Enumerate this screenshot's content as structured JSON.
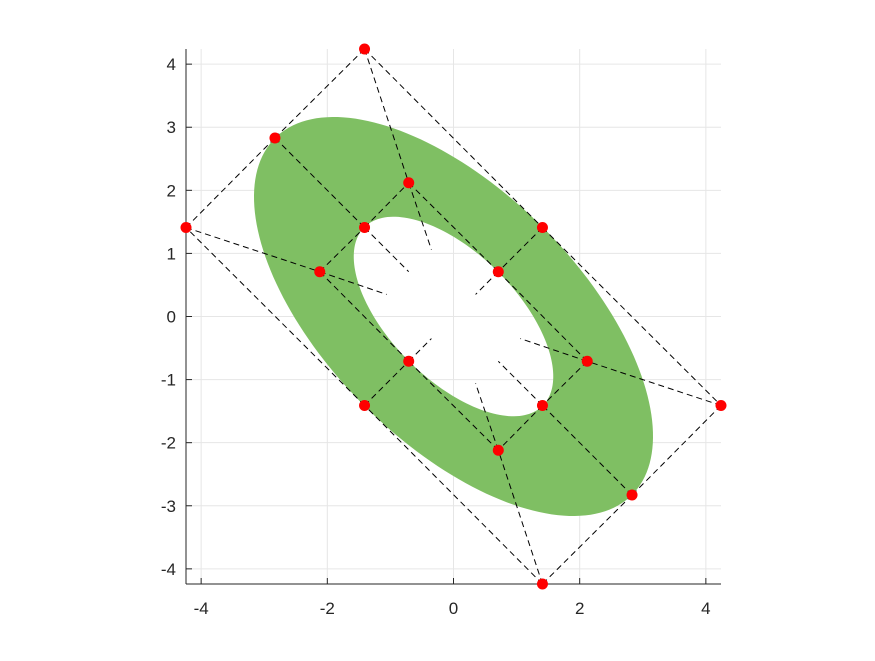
{
  "chart_data": {
    "type": "scatter",
    "title": "",
    "xlabel": "",
    "ylabel": "",
    "xlim": [
      -4.24,
      4.24
    ],
    "ylim": [
      -4.24,
      4.24
    ],
    "xticks": [
      -4,
      -2,
      0,
      2,
      4
    ],
    "yticks": [
      -4,
      -3,
      -2,
      -1,
      0,
      1,
      2,
      3,
      4
    ],
    "xtick_labels": [
      "-4",
      "-2",
      "0",
      "2",
      "4"
    ],
    "ytick_labels": [
      "-4",
      "-3",
      "-2",
      "-1",
      "0",
      "1",
      "2",
      "3",
      "4"
    ],
    "grid": true,
    "equal_aspect": true,
    "fill_color": "#7fbf63",
    "point_color": "#ff0000",
    "line_color": "#000000",
    "shape": {
      "kind": "rotated-elliptical-annulus",
      "center": [
        0,
        0
      ],
      "rotation_deg": -45,
      "outer_semi_axes": [
        4,
        2
      ],
      "inner_semi_axes": [
        2,
        1
      ]
    },
    "control_points": [
      {
        "x": -2.83,
        "y": 2.83
      },
      {
        "x": -4.24,
        "y": 1.41
      },
      {
        "x": -1.41,
        "y": 4.24
      },
      {
        "x": -0.71,
        "y": 2.12
      },
      {
        "x": -1.41,
        "y": 1.41
      },
      {
        "x": -2.12,
        "y": 0.71
      },
      {
        "x": 1.41,
        "y": 1.41
      },
      {
        "x": 0.71,
        "y": 0.71
      },
      {
        "x": 2.12,
        "y": -0.71
      },
      {
        "x": 4.24,
        "y": -1.41
      },
      {
        "x": 2.83,
        "y": -2.83
      },
      {
        "x": 1.41,
        "y": -1.41
      },
      {
        "x": 0.71,
        "y": -2.12
      },
      {
        "x": 1.41,
        "y": -4.24
      },
      {
        "x": -0.71,
        "y": -0.71
      },
      {
        "x": -1.41,
        "y": -1.41
      }
    ],
    "control_polygon": [
      [
        [
          -2.83,
          2.83
        ],
        [
          -1.41,
          1.41
        ]
      ],
      [
        [
          -1.41,
          1.41
        ],
        [
          -0.71,
          0.71
        ]
      ],
      [
        [
          -4.24,
          1.41
        ],
        [
          -2.12,
          0.71
        ]
      ],
      [
        [
          -2.12,
          0.71
        ],
        [
          -1.06,
          0.35
        ]
      ],
      [
        [
          -1.41,
          4.24
        ],
        [
          -0.71,
          2.12
        ]
      ],
      [
        [
          -0.71,
          2.12
        ],
        [
          -0.35,
          1.06
        ]
      ],
      [
        [
          1.41,
          1.41
        ],
        [
          0.71,
          0.71
        ]
      ],
      [
        [
          0.71,
          0.71
        ],
        [
          0.35,
          0.35
        ]
      ],
      [
        [
          4.24,
          -1.41
        ],
        [
          2.12,
          -0.71
        ]
      ],
      [
        [
          2.12,
          -0.71
        ],
        [
          1.06,
          -0.35
        ]
      ],
      [
        [
          2.83,
          -2.83
        ],
        [
          1.41,
          -1.41
        ]
      ],
      [
        [
          1.41,
          -1.41
        ],
        [
          0.71,
          -0.71
        ]
      ],
      [
        [
          1.41,
          -4.24
        ],
        [
          0.71,
          -2.12
        ]
      ],
      [
        [
          0.71,
          -2.12
        ],
        [
          0.35,
          -1.06
        ]
      ],
      [
        [
          -1.41,
          -1.41
        ],
        [
          -0.71,
          -0.71
        ]
      ],
      [
        [
          -0.71,
          -0.71
        ],
        [
          -0.35,
          -0.35
        ]
      ],
      [
        [
          -2.83,
          2.83
        ],
        [
          -1.41,
          4.24
        ]
      ],
      [
        [
          -1.41,
          4.24
        ],
        [
          1.41,
          1.41
        ]
      ],
      [
        [
          1.41,
          1.41
        ],
        [
          4.24,
          -1.41
        ]
      ],
      [
        [
          4.24,
          -1.41
        ],
        [
          2.83,
          -2.83
        ]
      ],
      [
        [
          2.83,
          -2.83
        ],
        [
          1.41,
          -4.24
        ]
      ],
      [
        [
          1.41,
          -4.24
        ],
        [
          -1.41,
          -1.41
        ]
      ],
      [
        [
          -1.41,
          -1.41
        ],
        [
          -4.24,
          1.41
        ]
      ],
      [
        [
          -4.24,
          1.41
        ],
        [
          -2.83,
          2.83
        ]
      ],
      [
        [
          -1.41,
          1.41
        ],
        [
          -0.71,
          2.12
        ]
      ],
      [
        [
          -0.71,
          2.12
        ],
        [
          0.71,
          0.71
        ]
      ],
      [
        [
          0.71,
          0.71
        ],
        [
          2.12,
          -0.71
        ]
      ],
      [
        [
          2.12,
          -0.71
        ],
        [
          1.41,
          -1.41
        ]
      ],
      [
        [
          1.41,
          -1.41
        ],
        [
          0.71,
          -2.12
        ]
      ],
      [
        [
          0.71,
          -2.12
        ],
        [
          -0.71,
          -0.71
        ]
      ],
      [
        [
          -0.71,
          -0.71
        ],
        [
          -2.12,
          0.71
        ]
      ],
      [
        [
          -2.12,
          0.71
        ],
        [
          -1.41,
          1.41
        ]
      ]
    ]
  }
}
